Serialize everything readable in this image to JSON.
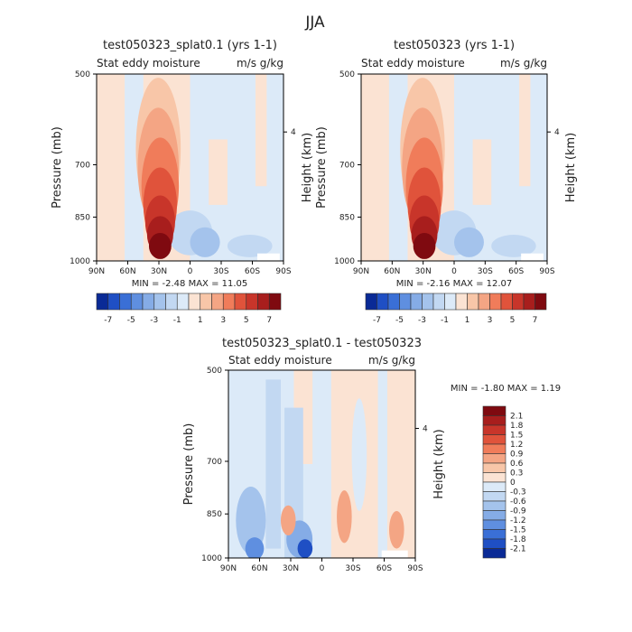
{
  "figure": {
    "title": "JJA",
    "colors": {
      "pos_scale": [
        "#fbe3d3",
        "#f8c6a8",
        "#f4a584",
        "#f07c5a",
        "#e0533b",
        "#c8352a",
        "#a81e1d",
        "#7f0a10"
      ],
      "neg_scale": [
        "#dceaf8",
        "#c2d8f2",
        "#a4c3ec",
        "#85ace6",
        "#5f8fe0",
        "#3a6fd6",
        "#1f4fc4",
        "#0a2a96"
      ],
      "background": "#ffffff"
    }
  },
  "chart_data": [
    {
      "type": "heatmap",
      "panel": "top-left",
      "title": "test050323_splat0.1 (yrs 1-1)",
      "subtitle_left": "Stat eddy moisture",
      "subtitle_right": "m/s g/kg",
      "ylabel": "Pressure (mb)",
      "ylabel_right": "Height (km)",
      "yticks": [
        "500",
        "700",
        "850",
        "1000"
      ],
      "ytick_values": [
        500,
        700,
        850,
        1000
      ],
      "right_ticks": [
        "4"
      ],
      "xticks": [
        "90N",
        "60N",
        "30N",
        "0",
        "30S",
        "60S",
        "90S"
      ],
      "stats": "MIN = -2.48 MAX = 11.05",
      "min": -2.48,
      "max": 11.05,
      "colorbar_labels": [
        "-7",
        "-5",
        "-3",
        "-1",
        "1",
        "3",
        "5",
        "7"
      ]
    },
    {
      "type": "heatmap",
      "panel": "top-right",
      "title": "test050323 (yrs 1-1)",
      "subtitle_left": "Stat eddy moisture",
      "subtitle_right": "m/s g/kg",
      "ylabel": "Pressure (mb)",
      "ylabel_right": "Height (km)",
      "yticks": [
        "500",
        "700",
        "850",
        "1000"
      ],
      "ytick_values": [
        500,
        700,
        850,
        1000
      ],
      "right_ticks": [
        "4"
      ],
      "xticks": [
        "90N",
        "60N",
        "30N",
        "0",
        "30S",
        "60S",
        "90S"
      ],
      "stats": "MIN = -2.16 MAX = 12.07",
      "min": -2.16,
      "max": 12.07,
      "colorbar_labels": [
        "-7",
        "-5",
        "-3",
        "-1",
        "1",
        "3",
        "5",
        "7"
      ]
    },
    {
      "type": "heatmap",
      "panel": "bottom",
      "title": "test050323_splat0.1 - test050323",
      "subtitle_left": "Stat eddy moisture",
      "subtitle_right": "m/s g/kg",
      "ylabel": "Pressure (mb)",
      "ylabel_right": "Height (km)",
      "yticks": [
        "500",
        "700",
        "850",
        "1000"
      ],
      "ytick_values": [
        500,
        700,
        850,
        1000
      ],
      "right_ticks": [
        "4"
      ],
      "xticks": [
        "90N",
        "60N",
        "30N",
        "0",
        "30S",
        "60S",
        "90S"
      ],
      "stats": "MIN = -1.80 MAX = 1.19",
      "min": -1.8,
      "max": 1.19,
      "colorbar_labels": [
        "2.1",
        "1.8",
        "1.5",
        "1.2",
        "0.9",
        "0.6",
        "0.3",
        "0",
        "-0.3",
        "-0.6",
        "-0.9",
        "-1.2",
        "-1.5",
        "-1.8",
        "-2.1"
      ]
    }
  ]
}
